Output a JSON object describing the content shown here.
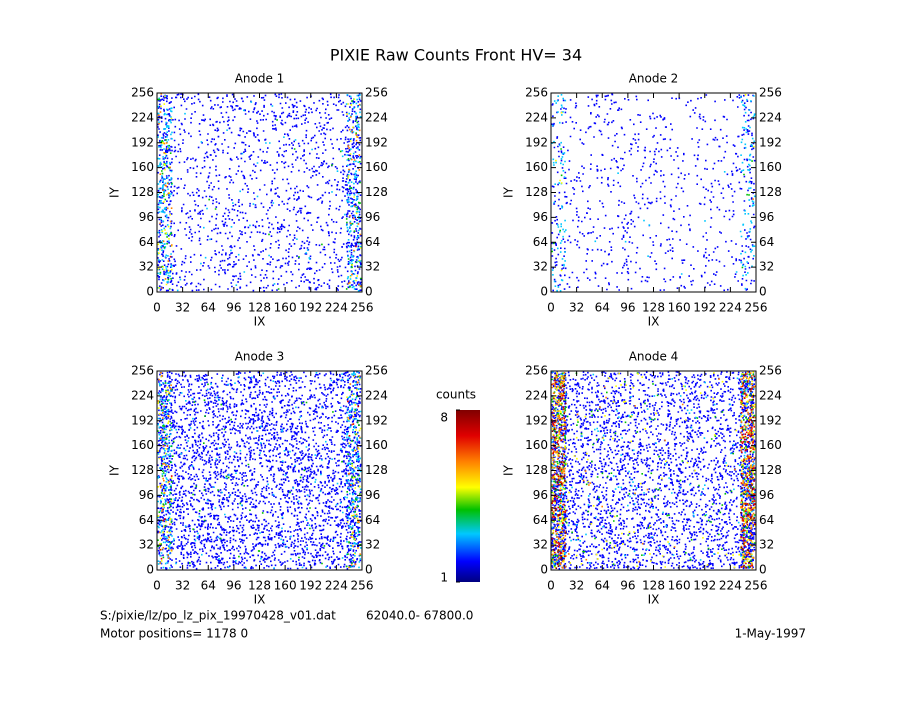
{
  "page_title": "PIXIE Raw Counts Front HV= 34",
  "chart_data": [
    {
      "type": "heatmap",
      "title": "Anode 1",
      "x_label": "IX",
      "y_label": "IY",
      "xlim": [
        0,
        256
      ],
      "ylim": [
        0,
        256
      ],
      "xticks": [
        0,
        32,
        64,
        96,
        128,
        160,
        192,
        224,
        256
      ],
      "yticks": [
        0,
        32,
        64,
        96,
        128,
        160,
        192,
        224,
        256
      ]
    },
    {
      "type": "heatmap",
      "title": "Anode 2",
      "x_label": "IX",
      "y_label": "IY",
      "xlim": [
        0,
        256
      ],
      "ylim": [
        0,
        256
      ],
      "xticks": [
        0,
        32,
        64,
        96,
        128,
        160,
        192,
        224,
        256
      ],
      "yticks": [
        0,
        32,
        64,
        96,
        128,
        160,
        192,
        224,
        256
      ]
    },
    {
      "type": "heatmap",
      "title": "Anode 3",
      "x_label": "IX",
      "y_label": "IY",
      "xlim": [
        0,
        256
      ],
      "ylim": [
        0,
        256
      ],
      "xticks": [
        0,
        32,
        64,
        96,
        128,
        160,
        192,
        224,
        256
      ],
      "yticks": [
        0,
        32,
        64,
        96,
        128,
        160,
        192,
        224,
        256
      ]
    },
    {
      "type": "heatmap",
      "title": "Anode 4",
      "x_label": "IX",
      "y_label": "IY",
      "xlim": [
        0,
        256
      ],
      "ylim": [
        0,
        256
      ],
      "xticks": [
        0,
        32,
        64,
        96,
        128,
        160,
        192,
        224,
        256
      ],
      "yticks": [
        0,
        32,
        64,
        96,
        128,
        160,
        192,
        224,
        256
      ]
    }
  ],
  "colorbar": {
    "label": "counts",
    "lim": [
      1,
      8
    ],
    "ticks": [
      1,
      8
    ]
  },
  "footer": {
    "file": "S:/pixie/lz/po_lz_pix_19970428_v01.dat",
    "range": "62040.0- 67800.0",
    "motor": "Motor positions= 1178 0",
    "date": "1-May-1997"
  }
}
